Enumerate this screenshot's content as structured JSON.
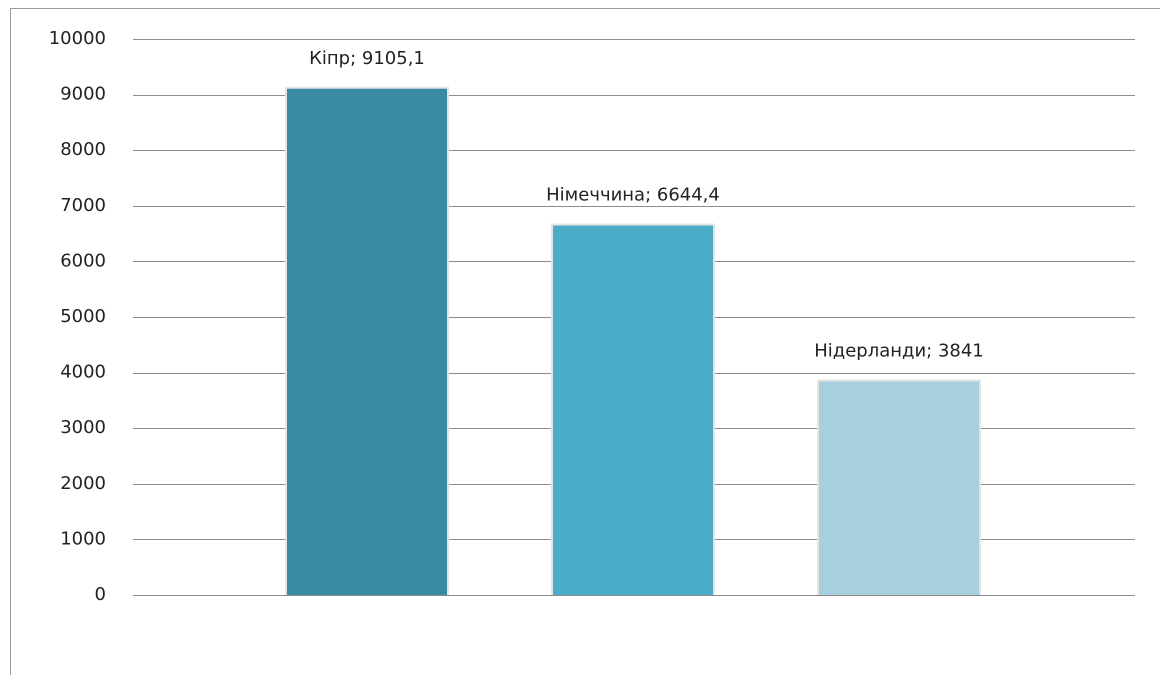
{
  "chart_data": {
    "type": "bar",
    "values": [
      9105.1,
      6644.4,
      3841
    ],
    "value_labels": [
      "Кіпр; 9105,1",
      "Німеччина; 6644,4",
      "Нідерланди; 3841"
    ],
    "colors": [
      "#3a8ba1",
      "#4aacc6",
      "#a8cfdd"
    ],
    "ylim": [
      0,
      10000
    ],
    "yticks": [
      0,
      1000,
      2000,
      3000,
      4000,
      5000,
      6000,
      7000,
      8000,
      9000,
      10000
    ],
    "grid": true
  }
}
